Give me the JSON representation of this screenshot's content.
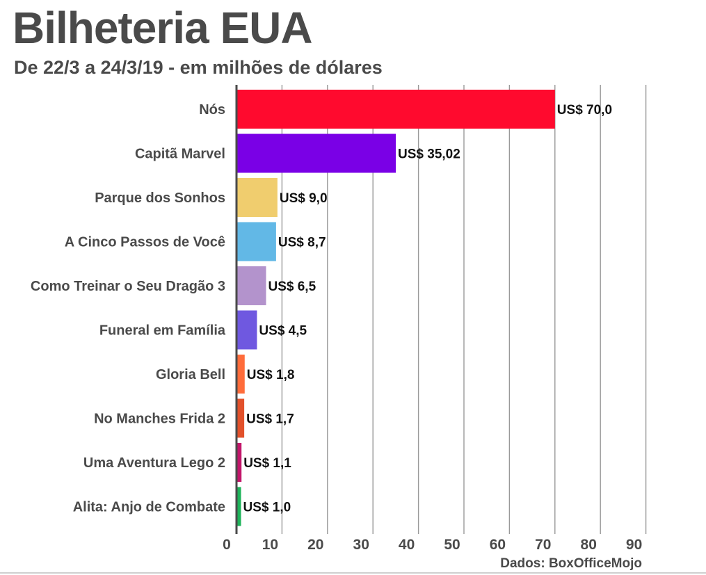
{
  "header": {
    "title": "Bilheteria EUA",
    "subtitle": "De 22/3 a 24/3/19 - em milhões de dólares"
  },
  "source": "Dados: BoxOfficeMojo",
  "chart_data": {
    "type": "bar",
    "orientation": "horizontal",
    "title": "Bilheteria EUA",
    "subtitle": "De 22/3 a 24/3/19 - em milhões de dólares",
    "categories": [
      "Nós",
      "Capitã Marvel",
      "Parque dos Sonhos",
      "A Cinco Passos de Você",
      "Como Treinar o Seu Dragão 3",
      "Funeral em Família",
      "Gloria Bell",
      "No Manches Frida 2",
      "Uma Aventura Lego 2",
      "Alita: Anjo de Combate"
    ],
    "values": [
      70.0,
      35.02,
      9.0,
      8.7,
      6.5,
      4.5,
      1.8,
      1.7,
      1.1,
      1.0
    ],
    "value_labels": [
      "US$ 70,0",
      "US$ 35,02",
      "US$ 9,0",
      "US$ 8,7",
      "US$ 6,5",
      "US$ 4,5",
      "US$ 1,8",
      "US$ 1,7",
      "US$ 1,1",
      "US$ 1,0"
    ],
    "colors": [
      "#ff0a2e",
      "#7a00e6",
      "#f0cd6e",
      "#62b8e6",
      "#b393cc",
      "#6f58e0",
      "#ff6c3b",
      "#e2512b",
      "#c2166a",
      "#1fb35a"
    ],
    "xlim": [
      0,
      90
    ],
    "xticks": [
      0,
      10,
      20,
      30,
      40,
      50,
      60,
      70,
      80,
      90
    ],
    "xtick_labels": [
      "0",
      "10",
      "20",
      "30",
      "40",
      "50",
      "60",
      "70",
      "80",
      "90"
    ],
    "grid": true,
    "grid_color": "#999999",
    "legend": "none"
  }
}
